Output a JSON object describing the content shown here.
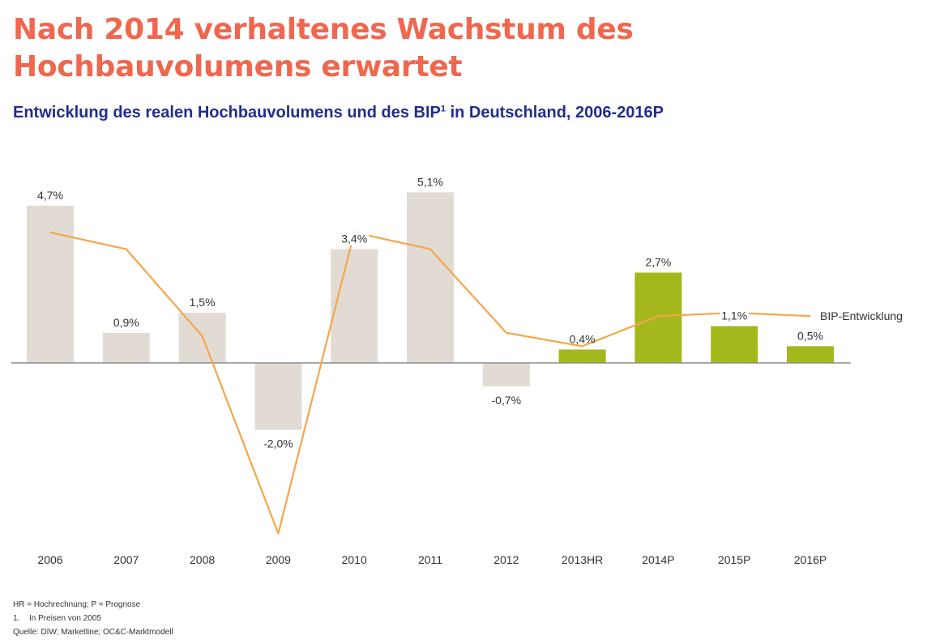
{
  "title": "Nach 2014 verhaltenes Wachstum des Hochbauvolumens erwartet",
  "subtitle": {
    "text": "Entwicklung des realen Hochbauvolumens und des BIP",
    "sup": "1",
    "suffix": " in Deutschland, 2006-2016P"
  },
  "chart_data": {
    "type": "bar",
    "categories": [
      "2006",
      "2007",
      "2008",
      "2009",
      "2010",
      "2011",
      "2012",
      "2013HR",
      "2014P",
      "2015P",
      "2016P"
    ],
    "series": [
      {
        "values": [
          4.7,
          0.9,
          1.5,
          -2.0,
          3.4,
          5.1,
          -0.7,
          0.4,
          2.7,
          1.1,
          0.5
        ],
        "labels": [
          "4,7%",
          "0,9%",
          "1,5%",
          "-2,0%",
          "3,4%",
          "5,1%",
          "-0,7%",
          "0,4%",
          "2,7%",
          "1,1%",
          "0,5%"
        ],
        "colors": [
          "#e1dbd3",
          "#e1dbd3",
          "#e1dbd3",
          "#e1dbd3",
          "#e1dbd3",
          "#e1dbd3",
          "#e1dbd3",
          "#a4b81c",
          "#a4b81c",
          "#a4b81c",
          "#a4b81c"
        ]
      },
      {
        "name": "BIP-Entwicklung",
        "type": "line",
        "color": "#f5a64a",
        "values": [
          3.9,
          3.4,
          0.8,
          -5.1,
          3.9,
          3.4,
          0.9,
          0.5,
          1.4,
          1.5,
          1.4
        ]
      }
    ],
    "ylim": [
      -5.5,
      6
    ]
  },
  "footnotes": {
    "line1": "HR = Hochrechnung; P = Prognose",
    "line2_num": "1.",
    "line2_text": "In Preisen von 2005",
    "line3": "Quelle: DIW; Marketline; OC&C-Marktmodell"
  }
}
